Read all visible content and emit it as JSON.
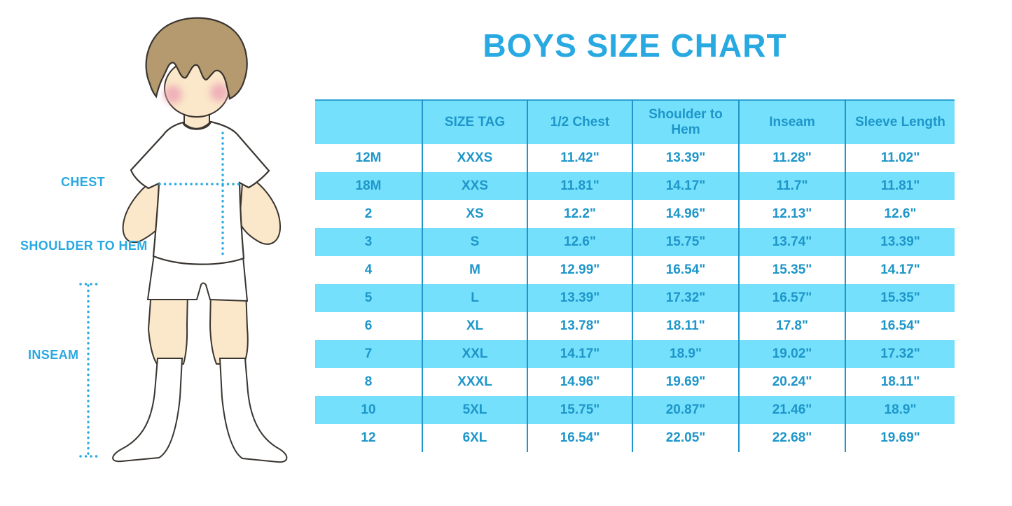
{
  "title": "BOYS SIZE CHART",
  "figure": {
    "description": "illustration of a boy in white t-shirt, shorts and knee socks with dotted measurement guides",
    "labels": {
      "chest": "CHEST",
      "shoulder_to_hem": "SHOULDER TO HEM",
      "inseam": "INSEAM"
    }
  },
  "chart_data": {
    "type": "table",
    "title": "BOYS SIZE CHART",
    "columns": [
      "",
      "SIZE TAG",
      "1/2 Chest",
      "Shoulder to Hem",
      "Inseam",
      "Sleeve Length"
    ],
    "rows": [
      [
        "12M",
        "XXXS",
        "11.42\"",
        "13.39\"",
        "11.28\"",
        "11.02\""
      ],
      [
        "18M",
        "XXS",
        "11.81\"",
        "14.17\"",
        "11.7\"",
        "11.81\""
      ],
      [
        "2",
        "XS",
        "12.2\"",
        "14.96\"",
        "12.13\"",
        "12.6\""
      ],
      [
        "3",
        "S",
        "12.6\"",
        "15.75\"",
        "13.74\"",
        "13.39\""
      ],
      [
        "4",
        "M",
        "12.99\"",
        "16.54\"",
        "15.35\"",
        "14.17\""
      ],
      [
        "5",
        "L",
        "13.39\"",
        "17.32\"",
        "16.57\"",
        "15.35\""
      ],
      [
        "6",
        "XL",
        "13.78\"",
        "18.11\"",
        "17.8\"",
        "16.54\""
      ],
      [
        "7",
        "XXL",
        "14.17\"",
        "18.9\"",
        "19.02\"",
        "17.32\""
      ],
      [
        "8",
        "XXXL",
        "14.96\"",
        "19.69\"",
        "20.24\"",
        "18.11\""
      ],
      [
        "10",
        "5XL",
        "15.75\"",
        "20.87\"",
        "21.46\"",
        "18.9\""
      ],
      [
        "12",
        "6XL",
        "16.54\"",
        "22.05\"",
        "22.68\"",
        "19.69\""
      ]
    ],
    "layout": {
      "stripe_rows": "alternating starting with header",
      "units": "inches"
    }
  },
  "colors": {
    "stripe_blue": "#74E0FC",
    "divider_blue": "#1E96C9",
    "cell_text": "#1E96C9",
    "title_blue": "#29A9E1",
    "dotted_guide": "#29A9E1",
    "skin": "#FBE7C9",
    "hair": "#B5996F",
    "blush": "#ECA4B5",
    "outline": "#3A3530"
  }
}
